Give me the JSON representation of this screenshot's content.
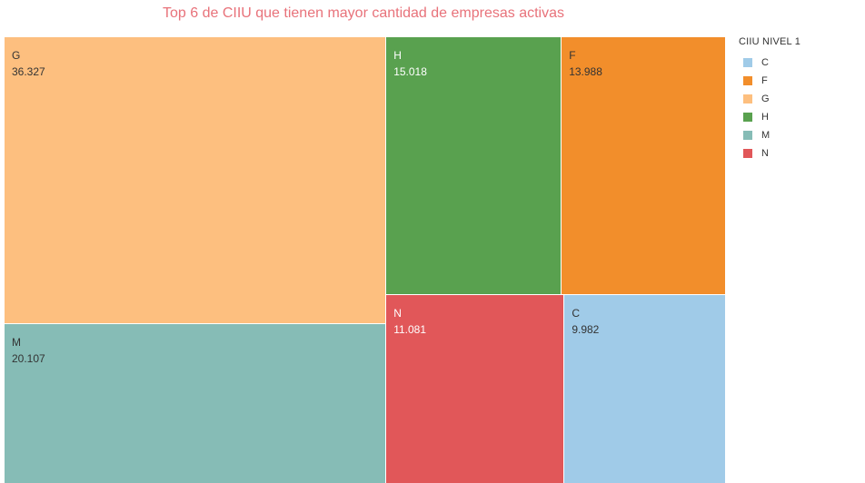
{
  "chart_data": {
    "type": "treemap",
    "title": "Top 6 de CIIU que tienen mayor cantidad de empresas activas",
    "legend_title": "CIIU NIVEL 1",
    "legend_placement": "right",
    "items": [
      {
        "name": "G",
        "value": 36327,
        "label": "36.327",
        "color": "#fdbf7f"
      },
      {
        "name": "M",
        "value": 20107,
        "label": "20.107",
        "color": "#86bcb6"
      },
      {
        "name": "H",
        "value": 15018,
        "label": "15.018",
        "color": "#59a14f"
      },
      {
        "name": "F",
        "value": 13988,
        "label": "13.988",
        "color": "#f28e2b"
      },
      {
        "name": "N",
        "value": 11081,
        "label": "11.081",
        "color": "#e15759"
      },
      {
        "name": "C",
        "value": 9982,
        "label": "9.982",
        "color": "#a0cbe8"
      }
    ],
    "legend": [
      {
        "name": "C",
        "color": "#a0cbe8"
      },
      {
        "name": "F",
        "color": "#f28e2b"
      },
      {
        "name": "G",
        "color": "#fdbf7f"
      },
      {
        "name": "H",
        "color": "#59a14f"
      },
      {
        "name": "M",
        "color": "#86bcb6"
      },
      {
        "name": "N",
        "color": "#e15759"
      }
    ],
    "label_colors": {
      "dark": "#333333",
      "light": "#ffffff"
    }
  }
}
